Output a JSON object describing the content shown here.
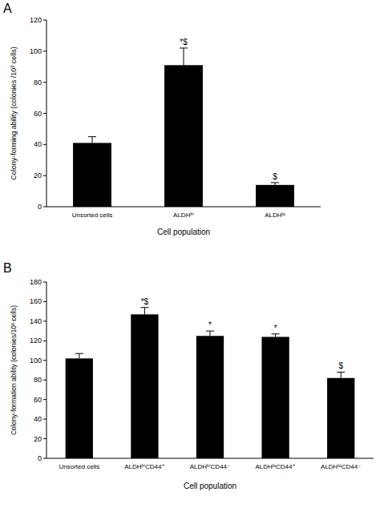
{
  "chart_data": [
    {
      "type": "bar",
      "title": "A",
      "x_label": "Cell population",
      "y_label": "Colony-forming ability (colonies /10³ cells)",
      "categories": [
        "Unsorted cells",
        "ALDHʰⁱ",
        "ALDHˡᵒ"
      ],
      "values": [
        41,
        91,
        14
      ],
      "errors": [
        4,
        11,
        1.5
      ],
      "annotations": [
        null,
        "*$",
        "$"
      ],
      "color": "#000000",
      "ylim": [
        0,
        120
      ],
      "yticks": [
        0,
        20,
        40,
        60,
        80,
        100,
        120
      ]
    },
    {
      "type": "bar",
      "title": "B",
      "x_label": "Cell population",
      "y_label": "Colony-formation ability (colonies/10³ cells)",
      "categories": [
        "Unsorted cells",
        "ALDHʰⁱCD44⁺",
        "ALDHʰⁱCD44⁻",
        "ALDHˡᵒCD44⁺",
        "ALDHˡᵒCD44⁻"
      ],
      "values": [
        102,
        147,
        125,
        124,
        82
      ],
      "errors": [
        5,
        7,
        5,
        3,
        6
      ],
      "annotations": [
        null,
        "*$",
        "*",
        "*",
        "$"
      ],
      "color": "#000000",
      "ylim": [
        0,
        180
      ],
      "yticks": [
        0,
        20,
        40,
        60,
        80,
        100,
        120,
        140,
        160,
        180
      ]
    }
  ]
}
